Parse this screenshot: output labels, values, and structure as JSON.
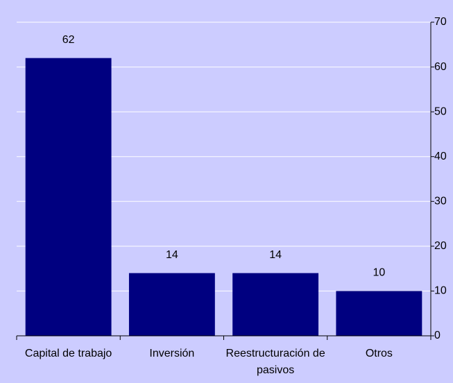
{
  "chart_data": {
    "type": "bar",
    "categories": [
      "Capital de trabajo",
      "Inversión",
      "Reestructuración de pasivos",
      "Otros"
    ],
    "values": [
      62,
      14,
      14,
      10
    ],
    "color": "#000080",
    "ylim": [
      0,
      70
    ],
    "yticks": [
      0,
      10,
      20,
      30,
      40,
      50,
      60,
      70
    ],
    "grid": true,
    "y_axis_side": "right"
  }
}
